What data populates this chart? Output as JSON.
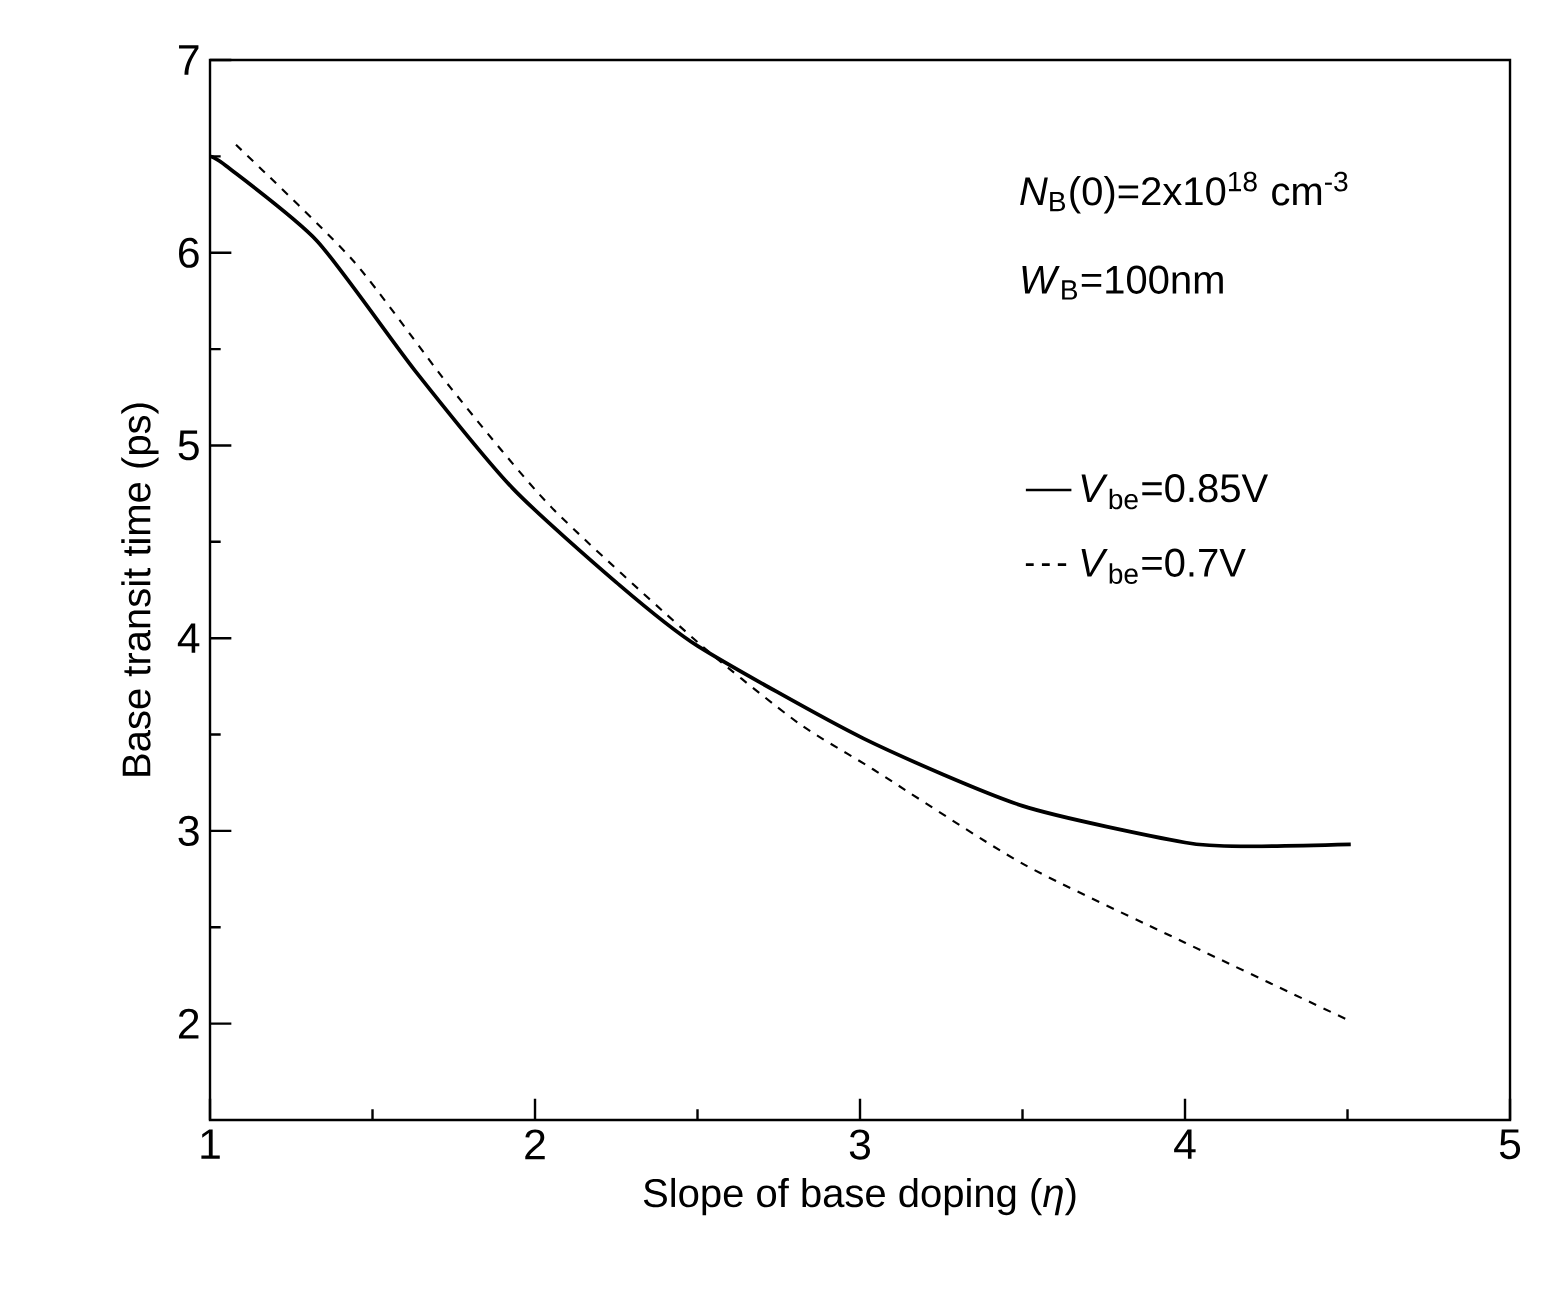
{
  "chart_data": {
    "type": "line",
    "xlabel": "Slope of base doping (*η*)",
    "ylabel": "Base transit time (ps)",
    "x": [
      1.0,
      1.05,
      1.33,
      1.63,
      1.93,
      2.25,
      2.5,
      3.01,
      3.5,
      4.0,
      4.2,
      4.51
    ],
    "series": [
      {
        "name": "*V*$_{be}$=0.85V",
        "color": "#000000",
        "line_style": "solid",
        "values": [
          6.5,
          6.45,
          6.06,
          5.39,
          4.78,
          4.29,
          3.96,
          3.48,
          3.13,
          2.94,
          2.92,
          2.93
        ]
      },
      {
        "name": "*V*$_{be}$=0.7V",
        "color": "#000000",
        "line_style": "dashed",
        "x": [
          1.08,
          1.44,
          1.74,
          2.05,
          2.5,
          2.81,
          3.04,
          3.5,
          4.0,
          4.5
        ],
        "values": [
          6.56,
          5.96,
          5.3,
          4.68,
          3.98,
          3.56,
          3.32,
          2.83,
          2.42,
          2.02
        ]
      }
    ],
    "annotations": [
      "*N*$_{B}$(0)=2x10$^{18}$ cm$^{-3}$",
      "*W*$_{B}$=100nm"
    ],
    "xlim": [
      1,
      5
    ],
    "ylim": [
      1.5,
      7
    ],
    "xticks": [
      1,
      2,
      3,
      4,
      5
    ],
    "yticks": [
      2,
      3,
      4,
      5,
      6,
      7
    ],
    "grid": false,
    "legend": "right"
  }
}
